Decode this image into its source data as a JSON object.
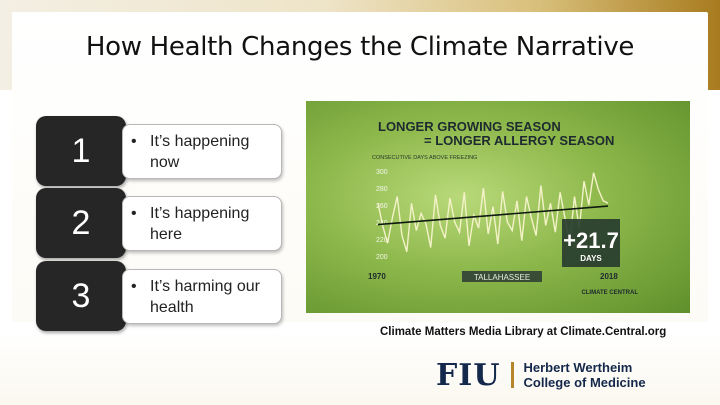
{
  "slide": {
    "title": "How Health Changes the Climate Narrative",
    "items": [
      {
        "number": "1",
        "bullet": "•",
        "text": "It’s happening now"
      },
      {
        "number": "2",
        "bullet": "•",
        "text": "It’s happening here"
      },
      {
        "number": "3",
        "bullet": "•",
        "text": "It’s harming our health"
      }
    ],
    "caption": "Climate Matters Media Library at Climate.Central.org",
    "logo": {
      "mark": "FIU",
      "line1": "Herbert Wertheim",
      "line2": "College of Medicine"
    },
    "colors": {
      "navy": "#14284b",
      "gold": "#b6862c",
      "dark_box": "#262626"
    }
  },
  "chart_data": {
    "type": "line",
    "title": "LONGER GROWING SEASON",
    "subtitle": "= LONGER ALLERGY SEASON",
    "ylabel": "CONSECUTIVE DAYS ABOVE FREEZING",
    "x_tick_labels": [
      "1970",
      "2018"
    ],
    "y_tick_labels": [
      "300",
      "280",
      "260",
      "240",
      "220",
      "200"
    ],
    "ylim": [
      200,
      300
    ],
    "xlim": [
      1970,
      2018
    ],
    "location": "TALLAHASSEE",
    "change_value": "+21.7",
    "change_unit": "DAYS",
    "source": "CLIMATE CENTRAL",
    "grid": false,
    "series": [
      {
        "x": [
          1970,
          1971,
          1972,
          1973,
          1974,
          1975,
          1976,
          1977,
          1978,
          1979,
          1980,
          1981,
          1982,
          1983,
          1984,
          1985,
          1986,
          1987,
          1988,
          1989,
          1990,
          1991,
          1992,
          1993,
          1994,
          1995,
          1996,
          1997,
          1998,
          1999,
          2000,
          2001,
          2002,
          2003,
          2004,
          2005,
          2006,
          2007,
          2008,
          2009,
          2010,
          2011,
          2012,
          2013,
          2014,
          2015,
          2016,
          2017,
          2018
        ],
        "values": [
          262,
          235,
          215,
          245,
          270,
          224,
          205,
          262,
          230,
          250,
          238,
          210,
          272,
          236,
          221,
          268,
          240,
          228,
          275,
          212,
          248,
          233,
          280,
          226,
          258,
          214,
          276,
          240,
          230,
          265,
          218,
          270,
          245,
          224,
          283,
          236,
          262,
          228,
          275,
          245,
          215,
          270,
          232,
          288,
          260,
          298,
          278,
          265,
          262
        ]
      }
    ],
    "trend": {
      "start": 237,
      "end": 258.7
    }
  }
}
